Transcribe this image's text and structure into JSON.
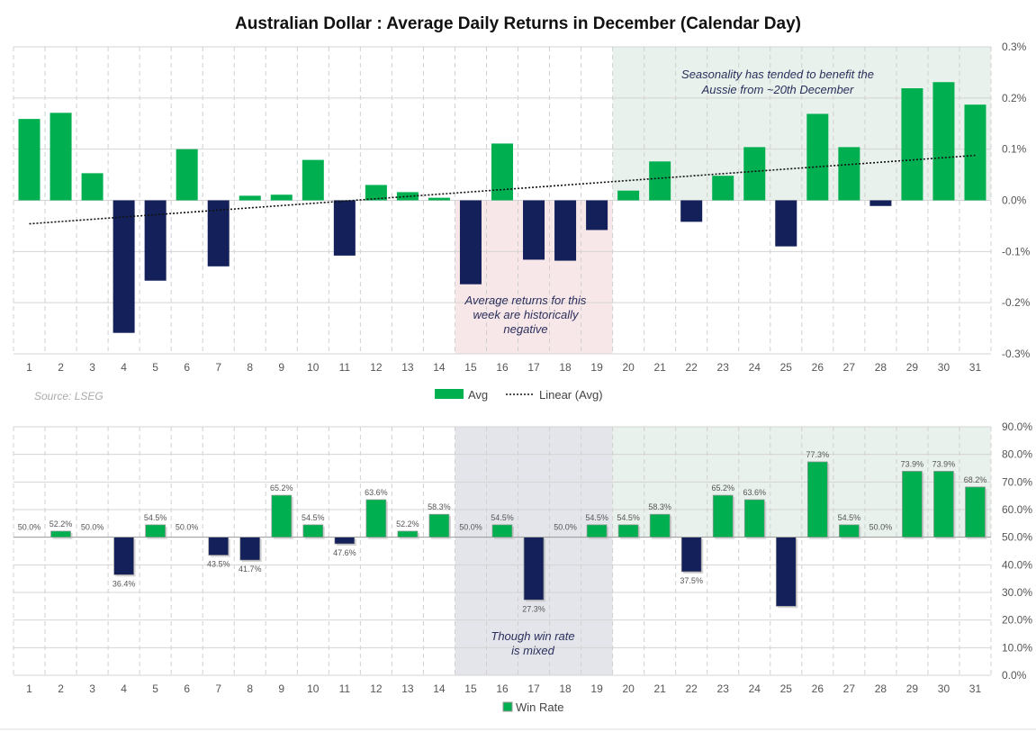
{
  "chart_data": [
    {
      "type": "bar",
      "title": "Australian Dollar : Average Daily Returns in December (Calendar Day)",
      "categories": [
        "1",
        "2",
        "3",
        "4",
        "5",
        "6",
        "7",
        "8",
        "9",
        "10",
        "11",
        "12",
        "13",
        "14",
        "15",
        "16",
        "17",
        "18",
        "19",
        "20",
        "21",
        "22",
        "23",
        "24",
        "25",
        "26",
        "27",
        "28",
        "29",
        "30",
        "31"
      ],
      "series": [
        {
          "name": "Avg",
          "unit": "%",
          "values": [
            0.159,
            0.171,
            0.053,
            -0.259,
            -0.157,
            0.1,
            -0.129,
            0.009,
            0.011,
            0.079,
            -0.108,
            0.03,
            0.016,
            0.005,
            -0.164,
            0.111,
            -0.116,
            -0.118,
            -0.058,
            0.019,
            0.076,
            -0.042,
            0.048,
            0.104,
            -0.09,
            0.169,
            0.104,
            -0.011,
            0.219,
            0.231,
            0.187
          ]
        },
        {
          "name": "Linear (Avg)",
          "type": "trendline"
        }
      ],
      "ylim": [
        -0.3,
        0.3
      ],
      "yticks": [
        "0.3%",
        "0.2%",
        "0.1%",
        "0.0%",
        "-0.1%",
        "-0.2%",
        "-0.3%"
      ],
      "grid": true,
      "legend": "bottom",
      "source": "Source: LSEG",
      "annotations": [
        "Seasonality has tended to benefit the",
        "Aussie from ~20th December",
        "Average returns for this",
        "week are historically",
        "negative"
      ],
      "colors": {
        "positive": "#00B050",
        "negative": "#14205A",
        "highlight_green": "#E8F1EB",
        "highlight_red": "#F8E7E8"
      }
    },
    {
      "type": "bar",
      "categories": [
        "1",
        "2",
        "3",
        "4",
        "5",
        "6",
        "7",
        "8",
        "9",
        "10",
        "11",
        "12",
        "13",
        "14",
        "15",
        "16",
        "17",
        "18",
        "19",
        "20",
        "21",
        "22",
        "23",
        "24",
        "25",
        "26",
        "27",
        "28",
        "29",
        "30",
        "31"
      ],
      "series": [
        {
          "name": "Win Rate",
          "unit": "%",
          "baseline": 50,
          "values": [
            50.0,
            52.2,
            50.0,
            36.4,
            54.5,
            50.0,
            43.5,
            41.7,
            65.2,
            54.5,
            47.6,
            63.6,
            52.2,
            58.3,
            50.0,
            54.5,
            27.3,
            50.0,
            54.5,
            54.5,
            58.3,
            37.5,
            65.2,
            63.6,
            25.0,
            77.3,
            54.5,
            50.0,
            73.9,
            73.9,
            68.2
          ],
          "labels": [
            "50.0%",
            "52.2%",
            "50.0%",
            "36.4%",
            "54.5%",
            "50.0%",
            "43.5%",
            "41.7%",
            "65.2%",
            "54.5%",
            "47.6%",
            "63.6%",
            "52.2%",
            "58.3%",
            "50.0%",
            "54.5%",
            "27.3%",
            "50.0%",
            "54.5%",
            "54.5%",
            "58.3%",
            "37.5%",
            "65.2%",
            "63.6%",
            "",
            "77.3%",
            "54.5%",
            "50.0%",
            "73.9%",
            "73.9%",
            "68.2%"
          ]
        }
      ],
      "ylim": [
        0,
        90
      ],
      "yticks": [
        "90.0%",
        "80.0%",
        "70.0%",
        "60.0%",
        "50.0%",
        "40.0%",
        "30.0%",
        "20.0%",
        "10.0%",
        "0.0%"
      ],
      "grid": true,
      "legend": "bottom",
      "annotations": [
        "Though win rate",
        "is mixed"
      ]
    }
  ]
}
